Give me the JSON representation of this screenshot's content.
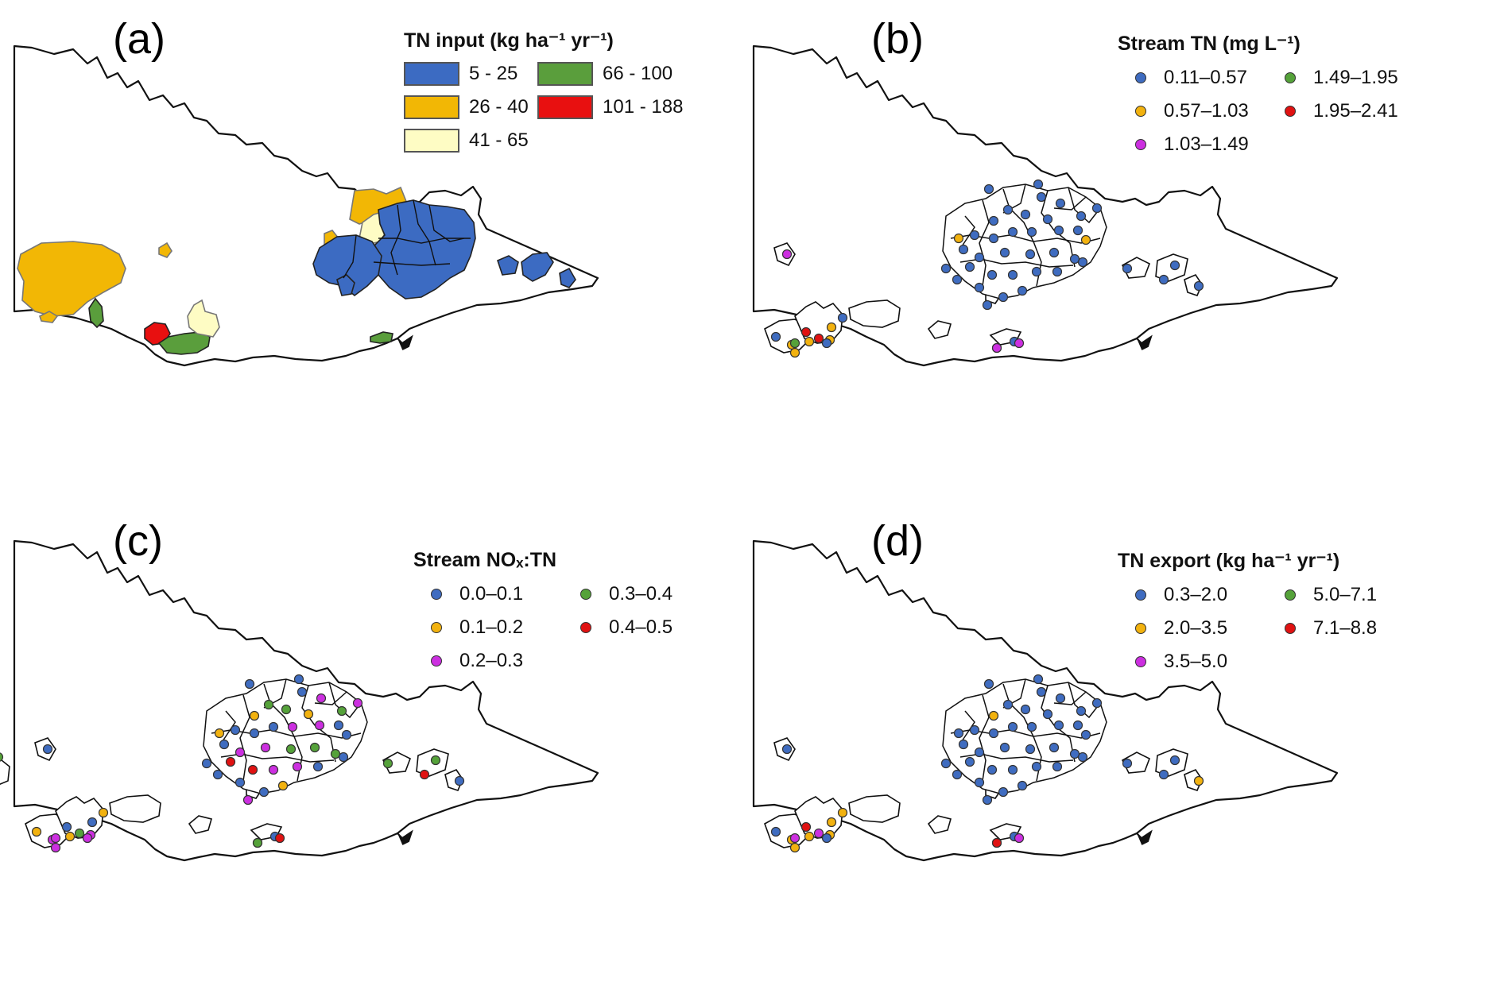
{
  "panels": [
    {
      "id": "a",
      "letter": "(a)",
      "legend_title": "TN input (kg ha⁻¹ yr⁻¹)",
      "legend_style": "swatch",
      "legend": [
        {
          "label": "5 - 25",
          "color": "#3c6bc2"
        },
        {
          "label": "26 - 40",
          "color": "#f2b705"
        },
        {
          "label": "41 - 65",
          "color": "#fefcc4"
        },
        {
          "label": "66 - 100",
          "color": "#5a9e3c"
        },
        {
          "label": "101 - 188",
          "color": "#e81010"
        }
      ]
    },
    {
      "id": "b",
      "letter": "(b)",
      "legend_title": "Stream TN (mg L⁻¹)",
      "legend_style": "dot",
      "legend": [
        {
          "label": "0.11–0.57",
          "color": "#3f6cc0"
        },
        {
          "label": "0.57–1.03",
          "color": "#f2b20f"
        },
        {
          "label": "1.03–1.49",
          "color": "#cc2fe0"
        },
        {
          "label": "1.49–1.95",
          "color": "#55a23a"
        },
        {
          "label": "1.95–2.41",
          "color": "#e01212"
        }
      ]
    },
    {
      "id": "c",
      "letter": "(c)",
      "legend_title": "Stream NOₓ:TN",
      "legend_style": "dot",
      "legend": [
        {
          "label": "0.0–0.1",
          "color": "#3f6cc0"
        },
        {
          "label": "0.1–0.2",
          "color": "#f2b20f"
        },
        {
          "label": "0.2–0.3",
          "color": "#cc2fe0"
        },
        {
          "label": "0.3–0.4",
          "color": "#55a23a"
        },
        {
          "label": "0.4–0.5",
          "color": "#e01212"
        }
      ]
    },
    {
      "id": "d",
      "letter": "(d)",
      "legend_title": "TN export (kg ha⁻¹ yr⁻¹)",
      "legend_style": "dot",
      "legend": [
        {
          "label": "0.3–2.0",
          "color": "#3f6cc0"
        },
        {
          "label": "2.0–3.5",
          "color": "#f2b20f"
        },
        {
          "label": "3.5–5.0",
          "color": "#cc2fe0"
        },
        {
          "label": "5.0–7.1",
          "color": "#55a23a"
        },
        {
          "label": "7.1–8.8",
          "color": "#e01212"
        }
      ]
    }
  ],
  "catchment_classes": {
    "west_big": 1,
    "west_small1": 1,
    "west_small2": 1,
    "sw_green": 3,
    "sw_red": 4,
    "sw_green2": 3,
    "sw_cream": 2,
    "ne_yellow1": 1,
    "ne_yellow2": 1,
    "ne_cream": 2,
    "ne_blue": 0,
    "ne_blue2": 0,
    "ne_blue3": 0,
    "e_blue1": 0,
    "e_blue2": 0,
    "e_blue3": 0,
    "gipps_green": 3
  },
  "site_classes": {
    "b": [
      0,
      0,
      0,
      0,
      0,
      0,
      0,
      0,
      0,
      0,
      0,
      0,
      0,
      0,
      0,
      0,
      0,
      1,
      1,
      0,
      0,
      0,
      0,
      0,
      0,
      0,
      0,
      0,
      0,
      0,
      0,
      0,
      0,
      0,
      0,
      0,
      0,
      0,
      0,
      0,
      2,
      2,
      2,
      2,
      2,
      0,
      0,
      2,
      0,
      1,
      1,
      1,
      4,
      4,
      3,
      1,
      1,
      0,
      0,
      2,
      2,
      0,
      0
    ],
    "c": [
      0,
      0,
      0,
      2,
      2,
      3,
      3,
      1,
      3,
      1,
      2,
      2,
      0,
      0,
      0,
      0,
      0,
      0,
      1,
      2,
      2,
      3,
      3,
      3,
      4,
      4,
      2,
      2,
      0,
      0,
      0,
      0,
      1,
      2,
      3,
      3,
      4,
      0,
      0,
      0,
      0,
      0,
      0,
      0,
      0,
      3,
      0,
      0,
      1,
      2,
      2,
      1,
      0,
      3,
      2,
      2,
      0,
      1,
      2,
      3,
      4,
      0,
      0
    ],
    "d": [
      0,
      0,
      0,
      0,
      0,
      0,
      0,
      1,
      0,
      0,
      0,
      0,
      0,
      0,
      0,
      0,
      0,
      0,
      0,
      0,
      0,
      0,
      0,
      0,
      0,
      0,
      0,
      0,
      0,
      0,
      0,
      0,
      0,
      0,
      0,
      0,
      0,
      1,
      0,
      1,
      0,
      0,
      0,
      0,
      0,
      0,
      0,
      0,
      0,
      1,
      1,
      1,
      4,
      2,
      2,
      1,
      1,
      1,
      0,
      4,
      2,
      0,
      0
    ]
  }
}
